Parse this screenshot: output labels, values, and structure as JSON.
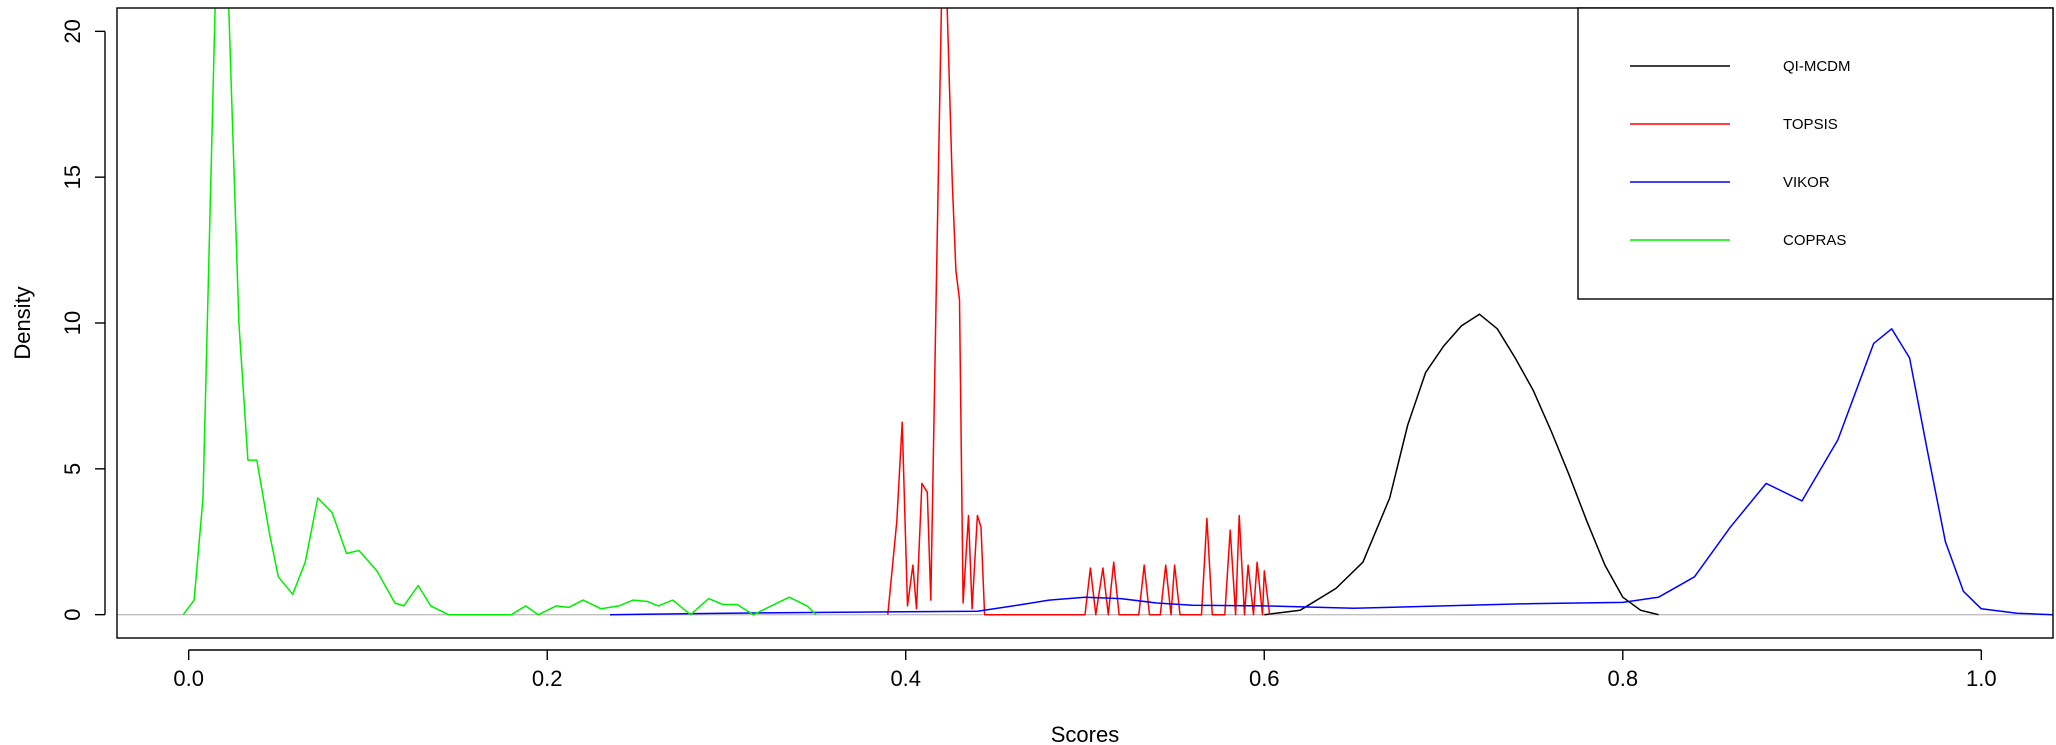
{
  "chart_data": {
    "type": "line",
    "title": "",
    "xlabel": "Scores",
    "ylabel": "Density",
    "xlim": [
      -0.04,
      1.04
    ],
    "ylim": [
      -0.8,
      20.8
    ],
    "xticks": [
      "0.0",
      "0.2",
      "0.4",
      "0.6",
      "0.8",
      "1.0"
    ],
    "yticks": [
      "0",
      "5",
      "10",
      "15",
      "20"
    ],
    "grid": false,
    "legend_position": "top-right",
    "baseline_color": "#c0c0c0",
    "series": [
      {
        "name": "QI-MCDM",
        "color": "#000000",
        "points": [
          [
            0.6,
            0.0
          ],
          [
            0.62,
            0.15
          ],
          [
            0.64,
            0.9
          ],
          [
            0.655,
            1.8
          ],
          [
            0.67,
            4.0
          ],
          [
            0.68,
            6.5
          ],
          [
            0.69,
            8.3
          ],
          [
            0.7,
            9.2
          ],
          [
            0.71,
            9.9
          ],
          [
            0.72,
            10.3
          ],
          [
            0.73,
            9.8
          ],
          [
            0.74,
            8.8
          ],
          [
            0.75,
            7.7
          ],
          [
            0.76,
            6.3
          ],
          [
            0.77,
            4.8
          ],
          [
            0.78,
            3.2
          ],
          [
            0.79,
            1.7
          ],
          [
            0.8,
            0.6
          ],
          [
            0.81,
            0.15
          ],
          [
            0.82,
            0.0
          ]
        ]
      },
      {
        "name": "TOPSIS",
        "color": "#ff0000",
        "points": [
          [
            0.39,
            0.0
          ],
          [
            0.395,
            3.2
          ],
          [
            0.398,
            6.6
          ],
          [
            0.401,
            0.3
          ],
          [
            0.404,
            1.7
          ],
          [
            0.406,
            0.2
          ],
          [
            0.409,
            4.5
          ],
          [
            0.412,
            4.2
          ],
          [
            0.414,
            0.5
          ],
          [
            0.417,
            11.0
          ],
          [
            0.42,
            21.2
          ],
          [
            0.423,
            21.0
          ],
          [
            0.426,
            14.8
          ],
          [
            0.428,
            11.8
          ],
          [
            0.43,
            10.8
          ],
          [
            0.432,
            0.4
          ],
          [
            0.435,
            3.4
          ],
          [
            0.437,
            0.2
          ],
          [
            0.44,
            3.4
          ],
          [
            0.442,
            3.0
          ],
          [
            0.444,
            0.0
          ],
          [
            0.5,
            0.0
          ],
          [
            0.503,
            1.6
          ],
          [
            0.506,
            0.0
          ],
          [
            0.51,
            1.6
          ],
          [
            0.513,
            0.0
          ],
          [
            0.516,
            1.8
          ],
          [
            0.519,
            0.0
          ],
          [
            0.53,
            0.0
          ],
          [
            0.533,
            1.7
          ],
          [
            0.536,
            0.0
          ],
          [
            0.542,
            0.0
          ],
          [
            0.545,
            1.7
          ],
          [
            0.548,
            0.0
          ],
          [
            0.55,
            1.7
          ],
          [
            0.553,
            0.0
          ],
          [
            0.565,
            0.0
          ],
          [
            0.568,
            3.3
          ],
          [
            0.571,
            0.0
          ],
          [
            0.578,
            0.0
          ],
          [
            0.581,
            2.9
          ],
          [
            0.584,
            0.0
          ],
          [
            0.586,
            3.4
          ],
          [
            0.589,
            0.0
          ],
          [
            0.591,
            1.7
          ],
          [
            0.594,
            0.0
          ],
          [
            0.596,
            1.8
          ],
          [
            0.599,
            0.0
          ],
          [
            0.6,
            1.5
          ],
          [
            0.603,
            0.0
          ]
        ]
      },
      {
        "name": "VIKOR",
        "color": "#0000ff",
        "points": [
          [
            0.235,
            0.0
          ],
          [
            0.3,
            0.05
          ],
          [
            0.4,
            0.1
          ],
          [
            0.44,
            0.12
          ],
          [
            0.46,
            0.3
          ],
          [
            0.48,
            0.5
          ],
          [
            0.5,
            0.6
          ],
          [
            0.52,
            0.55
          ],
          [
            0.54,
            0.4
          ],
          [
            0.56,
            0.32
          ],
          [
            0.6,
            0.3
          ],
          [
            0.65,
            0.22
          ],
          [
            0.7,
            0.3
          ],
          [
            0.75,
            0.38
          ],
          [
            0.8,
            0.42
          ],
          [
            0.82,
            0.6
          ],
          [
            0.84,
            1.3
          ],
          [
            0.86,
            3.0
          ],
          [
            0.88,
            4.5
          ],
          [
            0.9,
            3.9
          ],
          [
            0.92,
            6.0
          ],
          [
            0.94,
            9.3
          ],
          [
            0.95,
            9.8
          ],
          [
            0.96,
            8.8
          ],
          [
            0.97,
            5.6
          ],
          [
            0.98,
            2.5
          ],
          [
            0.99,
            0.8
          ],
          [
            1.0,
            0.2
          ],
          [
            1.02,
            0.05
          ],
          [
            1.04,
            0.0
          ]
        ]
      },
      {
        "name": "COPRAS",
        "color": "#00ee00",
        "points": [
          [
            -0.003,
            0.0
          ],
          [
            0.003,
            0.5
          ],
          [
            0.008,
            4.0
          ],
          [
            0.012,
            14.0
          ],
          [
            0.015,
            21.5
          ],
          [
            0.022,
            21.5
          ],
          [
            0.028,
            10.0
          ],
          [
            0.033,
            5.3
          ],
          [
            0.038,
            5.3
          ],
          [
            0.045,
            2.8
          ],
          [
            0.05,
            1.3
          ],
          [
            0.058,
            0.7
          ],
          [
            0.065,
            1.8
          ],
          [
            0.072,
            4.0
          ],
          [
            0.08,
            3.5
          ],
          [
            0.088,
            2.1
          ],
          [
            0.095,
            2.2
          ],
          [
            0.105,
            1.5
          ],
          [
            0.115,
            0.4
          ],
          [
            0.12,
            0.3
          ],
          [
            0.128,
            1.0
          ],
          [
            0.135,
            0.3
          ],
          [
            0.145,
            0.0
          ],
          [
            0.18,
            0.0
          ],
          [
            0.188,
            0.3
          ],
          [
            0.195,
            0.0
          ],
          [
            0.205,
            0.3
          ],
          [
            0.212,
            0.25
          ],
          [
            0.22,
            0.5
          ],
          [
            0.23,
            0.2
          ],
          [
            0.24,
            0.3
          ],
          [
            0.248,
            0.5
          ],
          [
            0.256,
            0.45
          ],
          [
            0.262,
            0.3
          ],
          [
            0.27,
            0.5
          ],
          [
            0.28,
            0.0
          ],
          [
            0.29,
            0.55
          ],
          [
            0.298,
            0.35
          ],
          [
            0.306,
            0.35
          ],
          [
            0.315,
            0.0
          ],
          [
            0.325,
            0.3
          ],
          [
            0.335,
            0.6
          ],
          [
            0.345,
            0.3
          ],
          [
            0.35,
            0.0
          ]
        ]
      }
    ]
  }
}
